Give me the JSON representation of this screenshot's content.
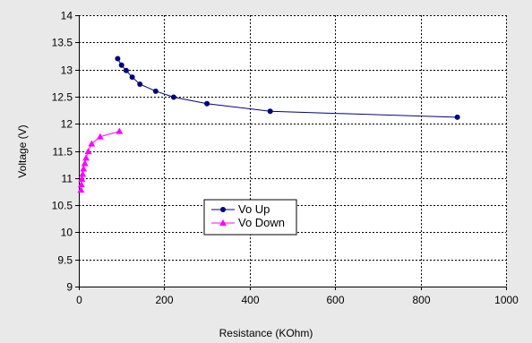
{
  "chart_data": {
    "type": "scatter",
    "title": "",
    "xlabel": "Resistance (KOhm)",
    "ylabel": "Voltage (V)",
    "xlim": [
      0,
      1000
    ],
    "ylim": [
      9,
      14
    ],
    "xticks": [
      0,
      200,
      400,
      600,
      800,
      1000
    ],
    "yticks": [
      9,
      9.5,
      10,
      10.5,
      11,
      11.5,
      12,
      12.5,
      13,
      13.5,
      14
    ],
    "grid": true,
    "legend_position": "center",
    "series": [
      {
        "name": "Vo Up",
        "marker": "circle",
        "color": "#000080",
        "x": [
          91,
          100,
          111,
          125,
          143,
          180,
          222,
          300,
          448,
          886
        ],
        "y": [
          13.2,
          13.08,
          12.98,
          12.86,
          12.73,
          12.6,
          12.49,
          12.37,
          12.23,
          12.12
        ]
      },
      {
        "name": "Vo Down",
        "marker": "triangle",
        "color": "#ff00ff",
        "x": [
          5,
          6,
          7,
          9,
          11,
          14,
          17,
          22,
          30,
          50,
          95
        ],
        "y": [
          10.78,
          10.88,
          10.98,
          11.07,
          11.17,
          11.27,
          11.37,
          11.49,
          11.63,
          11.76,
          11.86
        ]
      }
    ]
  }
}
